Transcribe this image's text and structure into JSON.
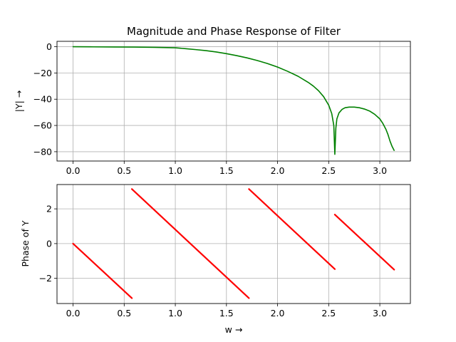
{
  "chart_data": [
    {
      "type": "line",
      "title": "Magnitude and Phase Response of Filter",
      "xlabel": "",
      "ylabel": "|Y| →",
      "xlim": [
        -0.157,
        3.299
      ],
      "ylim": [
        -87.1,
        4.1
      ],
      "xticks": [
        0.0,
        0.5,
        1.0,
        1.5,
        2.0,
        2.5,
        3.0
      ],
      "xtick_labels": [
        "0.0",
        "0.5",
        "1.0",
        "1.5",
        "2.0",
        "2.5",
        "3.0"
      ],
      "yticks": [
        0,
        -20,
        -40,
        -60,
        -80
      ],
      "ytick_labels": [
        "0",
        "−20",
        "−40",
        "−60",
        "−80"
      ],
      "grid": true,
      "color": "#008000",
      "series": [
        {
          "x": [
            0.0,
            0.2,
            0.4,
            0.6,
            0.8,
            1.0,
            1.1,
            1.2,
            1.3,
            1.4,
            1.5,
            1.6,
            1.7,
            1.8,
            1.9,
            2.0,
            2.1,
            2.2,
            2.3,
            2.35,
            2.4,
            2.45,
            2.5,
            2.53,
            2.55,
            2.56,
            2.57,
            2.58,
            2.6,
            2.63,
            2.66,
            2.7,
            2.75,
            2.8,
            2.85,
            2.9,
            2.95,
            3.0,
            3.03,
            3.06,
            3.08,
            3.1,
            3.12,
            3.14
          ],
          "y": [
            0,
            -0.1,
            -0.2,
            -0.3,
            -0.5,
            -0.8,
            -1.5,
            -2.2,
            -3.0,
            -4.0,
            -5.3,
            -6.8,
            -8.5,
            -10.5,
            -12.8,
            -15.5,
            -18.8,
            -22.5,
            -27.2,
            -30.0,
            -33.5,
            -38.0,
            -44.5,
            -51.0,
            -60.0,
            -82.0,
            -62.0,
            -55.0,
            -50.5,
            -47.8,
            -46.5,
            -46.0,
            -46.0,
            -46.5,
            -47.5,
            -49.0,
            -51.5,
            -55.0,
            -58.5,
            -63.0,
            -67.0,
            -72.0,
            -76.0,
            -79.0
          ]
        }
      ]
    },
    {
      "type": "line",
      "title": "",
      "xlabel": "w →",
      "ylabel": "Phase of Y",
      "xlim": [
        -0.157,
        3.299
      ],
      "ylim": [
        -3.45,
        3.4
      ],
      "xticks": [
        0.0,
        0.5,
        1.0,
        1.5,
        2.0,
        2.5,
        3.0
      ],
      "xtick_labels": [
        "0.0",
        "0.5",
        "1.0",
        "1.5",
        "2.0",
        "2.5",
        "3.0"
      ],
      "yticks": [
        2,
        0,
        -2
      ],
      "ytick_labels": [
        "2",
        "0",
        "−2"
      ],
      "grid": true,
      "color": "#ff0000",
      "series": [
        {
          "x": [
            0.0,
            0.575
          ],
          "y": [
            0.0,
            -3.14
          ]
        },
        {
          "x": [
            0.575,
            1.72
          ],
          "y": [
            3.14,
            -3.14
          ]
        },
        {
          "x": [
            1.72,
            2.56
          ],
          "y": [
            3.14,
            -1.47
          ]
        },
        {
          "x": [
            2.56,
            3.14
          ],
          "y": [
            1.67,
            -1.5
          ]
        }
      ]
    }
  ]
}
